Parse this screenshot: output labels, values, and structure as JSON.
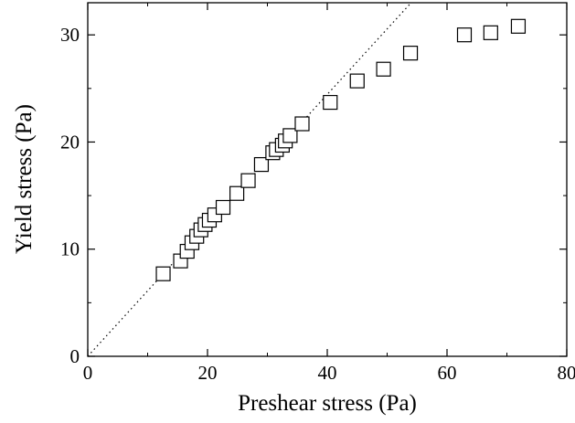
{
  "chart_data": {
    "type": "scatter",
    "xlabel": "Preshear stress (Pa)",
    "ylabel": "Yield stress (Pa)",
    "xlim": [
      0,
      80
    ],
    "ylim": [
      0,
      33
    ],
    "x_ticks": [
      0,
      20,
      40,
      60,
      80
    ],
    "y_ticks": [
      0,
      10,
      20,
      30
    ],
    "x_tick_labels": [
      "0",
      "20",
      "40",
      "60",
      "80"
    ],
    "y_tick_labels": [
      "0",
      "10",
      "20",
      "30"
    ],
    "grid": false,
    "marker": "open-square",
    "series": [
      {
        "x": [
          12.6,
          15.5,
          16.6,
          17.4,
          18.2,
          18.9,
          19.6,
          20.3,
          21.2,
          22.6,
          24.9,
          26.8,
          29.0,
          30.9,
          31.5,
          32.5,
          33.0,
          33.8,
          35.8,
          40.5,
          45.0,
          49.4,
          53.9,
          62.9,
          67.3,
          71.9
        ],
        "y": [
          7.7,
          8.9,
          9.8,
          10.6,
          11.2,
          11.8,
          12.3,
          12.7,
          13.2,
          13.9,
          15.2,
          16.4,
          17.9,
          19.0,
          19.3,
          19.7,
          20.1,
          20.6,
          21.7,
          23.7,
          25.7,
          26.8,
          28.3,
          30.0,
          30.2,
          30.8
        ]
      }
    ],
    "reference_line": {
      "style": "dotted",
      "from": [
        0,
        0
      ],
      "to": [
        54,
        33
      ]
    }
  }
}
